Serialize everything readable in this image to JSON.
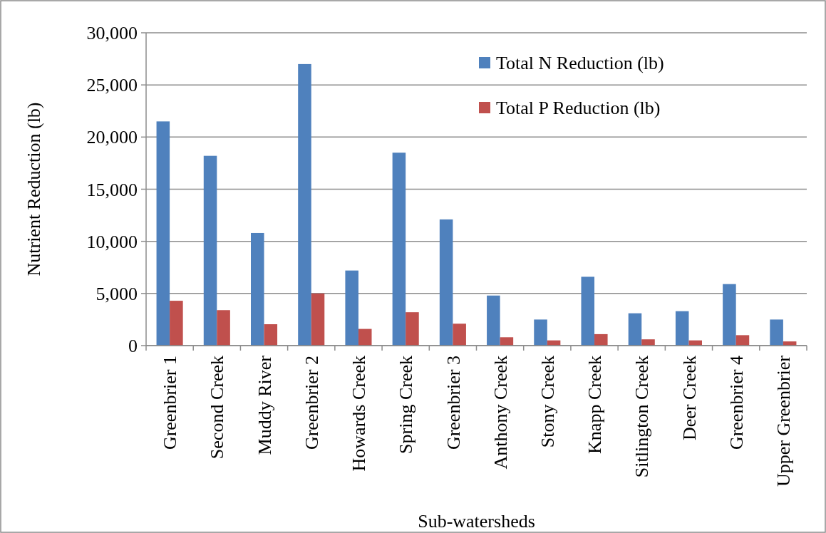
{
  "chart_data": {
    "type": "bar",
    "xlabel": "Sub-watersheds",
    "ylabel": "Nutrient Reduction (lb)",
    "categories": [
      "Greenbrier 1",
      "Second Creek",
      "Muddy River",
      "Greenbrier 2",
      "Howards Creek",
      "Spring Creek",
      "Greenbrier 3",
      "Anthony Creek",
      "Stony Creek",
      "Knapp Creek",
      "Sitlington Creek",
      "Deer Creek",
      "Greenbrier 4",
      "Upper Greenbrier"
    ],
    "series": [
      {
        "name": "Total N Reduction (lb)",
        "color": "#4f81bd",
        "values": [
          21500,
          18200,
          10800,
          27000,
          7200,
          18500,
          12100,
          4800,
          2500,
          6600,
          3100,
          3300,
          5900,
          2500
        ]
      },
      {
        "name": "Total P Reduction (lb)",
        "color": "#c0504d",
        "values": [
          4300,
          3400,
          2050,
          5000,
          1600,
          3200,
          2100,
          800,
          500,
          1100,
          600,
          500,
          1000,
          400
        ]
      }
    ],
    "ylim": [
      0,
      30000
    ],
    "yticks": [
      {
        "value": 0,
        "label": "0"
      },
      {
        "value": 5000,
        "label": "5,000"
      },
      {
        "value": 10000,
        "label": "10,000"
      },
      {
        "value": 15000,
        "label": "15,000"
      },
      {
        "value": 20000,
        "label": "20,000"
      },
      {
        "value": 25000,
        "label": "25,000"
      },
      {
        "value": 30000,
        "label": "30,000"
      }
    ],
    "grid": "y",
    "legend": "top right"
  }
}
